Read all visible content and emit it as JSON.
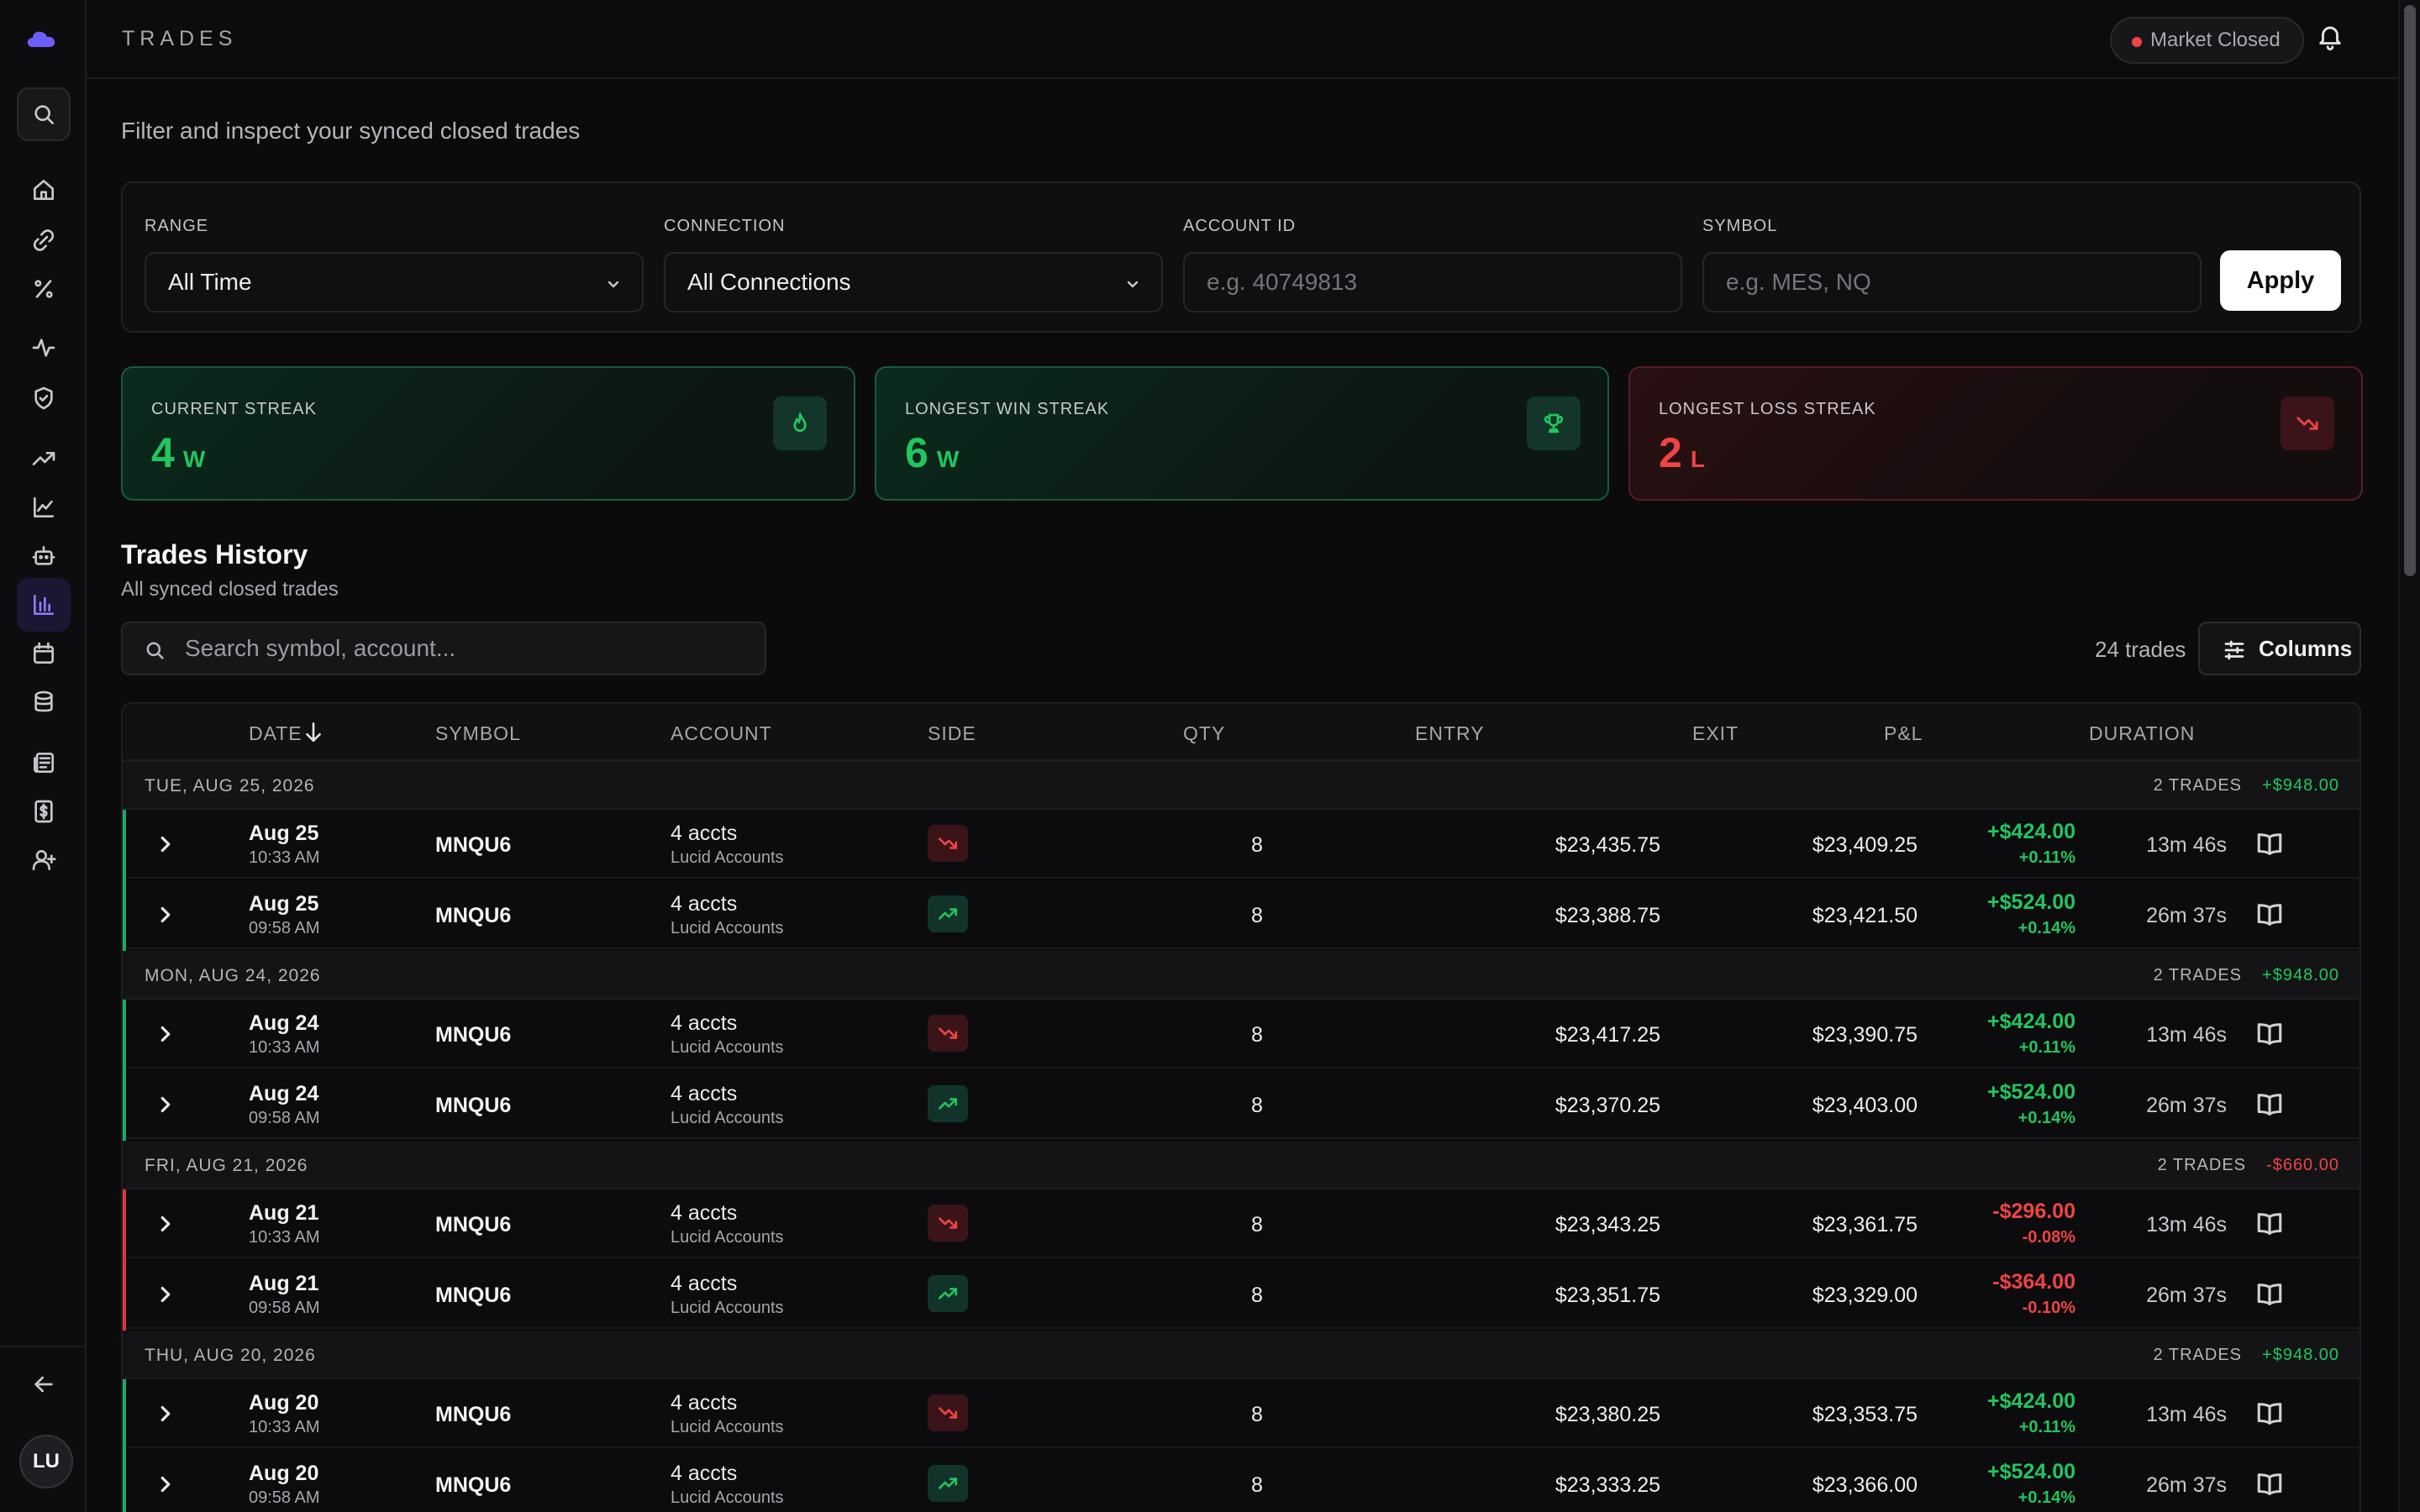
{
  "header": {
    "title": "TRADES",
    "market_status": "Market Closed"
  },
  "sidebar": {
    "items": [
      "search-icon",
      "home-icon",
      "link-icon",
      "percent-icon",
      "activity-icon",
      "shield-icon",
      "trending-up-icon",
      "line-chart-icon",
      "bot-icon",
      "bar-chart-icon",
      "calendar-icon",
      "database-icon",
      "newspaper-icon",
      "dollar-receipt-icon",
      "user-plus-icon"
    ],
    "active": "bar-chart-icon",
    "collapse_icon": "arrow-left-icon",
    "avatar_initials": "LU"
  },
  "page": {
    "subtitle": "Filter and inspect your synced closed trades"
  },
  "filters": {
    "range": {
      "label": "RANGE",
      "value": "All Time"
    },
    "connection": {
      "label": "CONNECTION",
      "value": "All Connections"
    },
    "account_id": {
      "label": "ACCOUNT ID",
      "placeholder": "e.g. 40749813"
    },
    "symbol": {
      "label": "SYMBOL",
      "placeholder": "e.g. MES, NQ"
    },
    "apply_label": "Apply"
  },
  "streaks": {
    "current": {
      "label": "CURRENT STREAK",
      "value": "4",
      "unit": "W"
    },
    "longest_win": {
      "label": "LONGEST WIN STREAK",
      "value": "6",
      "unit": "W"
    },
    "longest_loss": {
      "label": "LONGEST LOSS STREAK",
      "value": "2",
      "unit": "L"
    }
  },
  "history": {
    "title": "Trades History",
    "subtitle": "All synced closed trades",
    "search_placeholder": "Search symbol, account...",
    "trade_count": "24 trades",
    "columns_label": "Columns"
  },
  "table": {
    "columns": {
      "date": "DATE",
      "symbol": "SYMBOL",
      "account": "ACCOUNT",
      "side": "SIDE",
      "qty": "QTY",
      "entry": "ENTRY",
      "exit": "EXIT",
      "pnl": "P&L",
      "duration": "DURATION"
    },
    "groups": [
      {
        "date": "TUE, AUG 25, 2026",
        "count": "2 TRADES",
        "pnl": "+$948.00",
        "positive": true,
        "rows": [
          {
            "date": "Aug 25",
            "time": "10:33 AM",
            "symbol": "MNQU6",
            "account": "4 accts",
            "account_sub": "Lucid Accounts",
            "side": "short",
            "qty": "8",
            "entry": "$23,435.75",
            "exit": "$23,409.25",
            "pnl": "+$424.00",
            "pct": "+0.11%",
            "duration": "13m 46s"
          },
          {
            "date": "Aug 25",
            "time": "09:58 AM",
            "symbol": "MNQU6",
            "account": "4 accts",
            "account_sub": "Lucid Accounts",
            "side": "long",
            "qty": "8",
            "entry": "$23,388.75",
            "exit": "$23,421.50",
            "pnl": "+$524.00",
            "pct": "+0.14%",
            "duration": "26m 37s"
          }
        ]
      },
      {
        "date": "MON, AUG 24, 2026",
        "count": "2 TRADES",
        "pnl": "+$948.00",
        "positive": true,
        "rows": [
          {
            "date": "Aug 24",
            "time": "10:33 AM",
            "symbol": "MNQU6",
            "account": "4 accts",
            "account_sub": "Lucid Accounts",
            "side": "short",
            "qty": "8",
            "entry": "$23,417.25",
            "exit": "$23,390.75",
            "pnl": "+$424.00",
            "pct": "+0.11%",
            "duration": "13m 46s"
          },
          {
            "date": "Aug 24",
            "time": "09:58 AM",
            "symbol": "MNQU6",
            "account": "4 accts",
            "account_sub": "Lucid Accounts",
            "side": "long",
            "qty": "8",
            "entry": "$23,370.25",
            "exit": "$23,403.00",
            "pnl": "+$524.00",
            "pct": "+0.14%",
            "duration": "26m 37s"
          }
        ]
      },
      {
        "date": "FRI, AUG 21, 2026",
        "count": "2 TRADES",
        "pnl": "-$660.00",
        "positive": false,
        "rows": [
          {
            "date": "Aug 21",
            "time": "10:33 AM",
            "symbol": "MNQU6",
            "account": "4 accts",
            "account_sub": "Lucid Accounts",
            "side": "short",
            "qty": "8",
            "entry": "$23,343.25",
            "exit": "$23,361.75",
            "pnl": "-$296.00",
            "pct": "-0.08%",
            "duration": "13m 46s"
          },
          {
            "date": "Aug 21",
            "time": "09:58 AM",
            "symbol": "MNQU6",
            "account": "4 accts",
            "account_sub": "Lucid Accounts",
            "side": "long",
            "qty": "8",
            "entry": "$23,351.75",
            "exit": "$23,329.00",
            "pnl": "-$364.00",
            "pct": "-0.10%",
            "duration": "26m 37s"
          }
        ]
      },
      {
        "date": "THU, AUG 20, 2026",
        "count": "2 TRADES",
        "pnl": "+$948.00",
        "positive": true,
        "rows": [
          {
            "date": "Aug 20",
            "time": "10:33 AM",
            "symbol": "MNQU6",
            "account": "4 accts",
            "account_sub": "Lucid Accounts",
            "side": "short",
            "qty": "8",
            "entry": "$23,380.25",
            "exit": "$23,353.75",
            "pnl": "+$424.00",
            "pct": "+0.11%",
            "duration": "13m 46s"
          },
          {
            "date": "Aug 20",
            "time": "09:58 AM",
            "symbol": "MNQU6",
            "account": "4 accts",
            "account_sub": "Lucid Accounts",
            "side": "long",
            "qty": "8",
            "entry": "$23,333.25",
            "exit": "$23,366.00",
            "pnl": "+$524.00",
            "pct": "+0.14%",
            "duration": "26m 37s"
          }
        ]
      }
    ]
  }
}
